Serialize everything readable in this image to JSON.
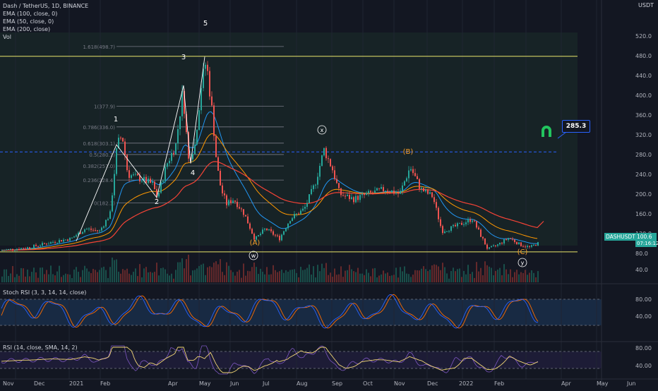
{
  "header": {
    "symbol_line": "Dash / TetherUS, 1D, BINANCE",
    "indicators": [
      "EMA (100, close, 0)",
      "EMA (50, close, 0)",
      "EMA (200, close)",
      "Vol"
    ],
    "quote_currency": "USDT"
  },
  "price_axis": {
    "ticks": [
      "520.0",
      "480.0",
      "440.0",
      "400.0",
      "360.0",
      "320.0",
      "280.0",
      "240.0",
      "200.0",
      "160.0",
      "120.0",
      "80.0",
      "40.0"
    ],
    "last_price_symbol": "DASHUSDT",
    "last_price": "100.6",
    "countdown": "07:16:12"
  },
  "time_axis": {
    "labels": [
      "Nov",
      "Dec",
      "2021",
      "Feb",
      "Apr",
      "May",
      "Jun",
      "Jul",
      "Aug",
      "Sep",
      "Oct",
      "Nov",
      "Dec",
      "2022",
      "Feb",
      "Apr",
      "May",
      "Jun"
    ]
  },
  "fib_levels": [
    "1.618(498.7)",
    "1(377.9)",
    "0.786(336.0)",
    "0.618(303.1)",
    "0.5(280.1)",
    "0.382(257.0)",
    "0.236(228.4)",
    "0(182.3)"
  ],
  "wave_labels": {
    "impulse": [
      "1",
      "2",
      "3",
      "4",
      "5"
    ],
    "correction": [
      "(A)",
      "(B)",
      "(C)"
    ],
    "complex": [
      "w",
      "x",
      "y"
    ]
  },
  "callout": {
    "value": "285.3"
  },
  "stoch_rsi": {
    "title": "Stoch RSI (3, 3, 14, 14, close)",
    "ticks": [
      "80.00",
      "40.00"
    ]
  },
  "rsi": {
    "title": "RSI (14, close, SMA, 14, 2)",
    "ticks": [
      "80.00",
      "40.00"
    ]
  },
  "colors": {
    "background": "#131722",
    "up": "#26a69a",
    "down": "#ef5350",
    "ema50": "#2196f3",
    "ema100": "#ff9800",
    "ema200": "#f44336",
    "fib": "#787b86",
    "horizontal": "#e8e56a",
    "wave_white": "#ffffff",
    "wave_orange": "#f59d2a",
    "magnet": "#22c55e",
    "stoch_k": "#2962ff",
    "stoch_d": "#ff6d00",
    "rsi": "#7e57c2",
    "rsi_sma": "#f2d675"
  }
}
